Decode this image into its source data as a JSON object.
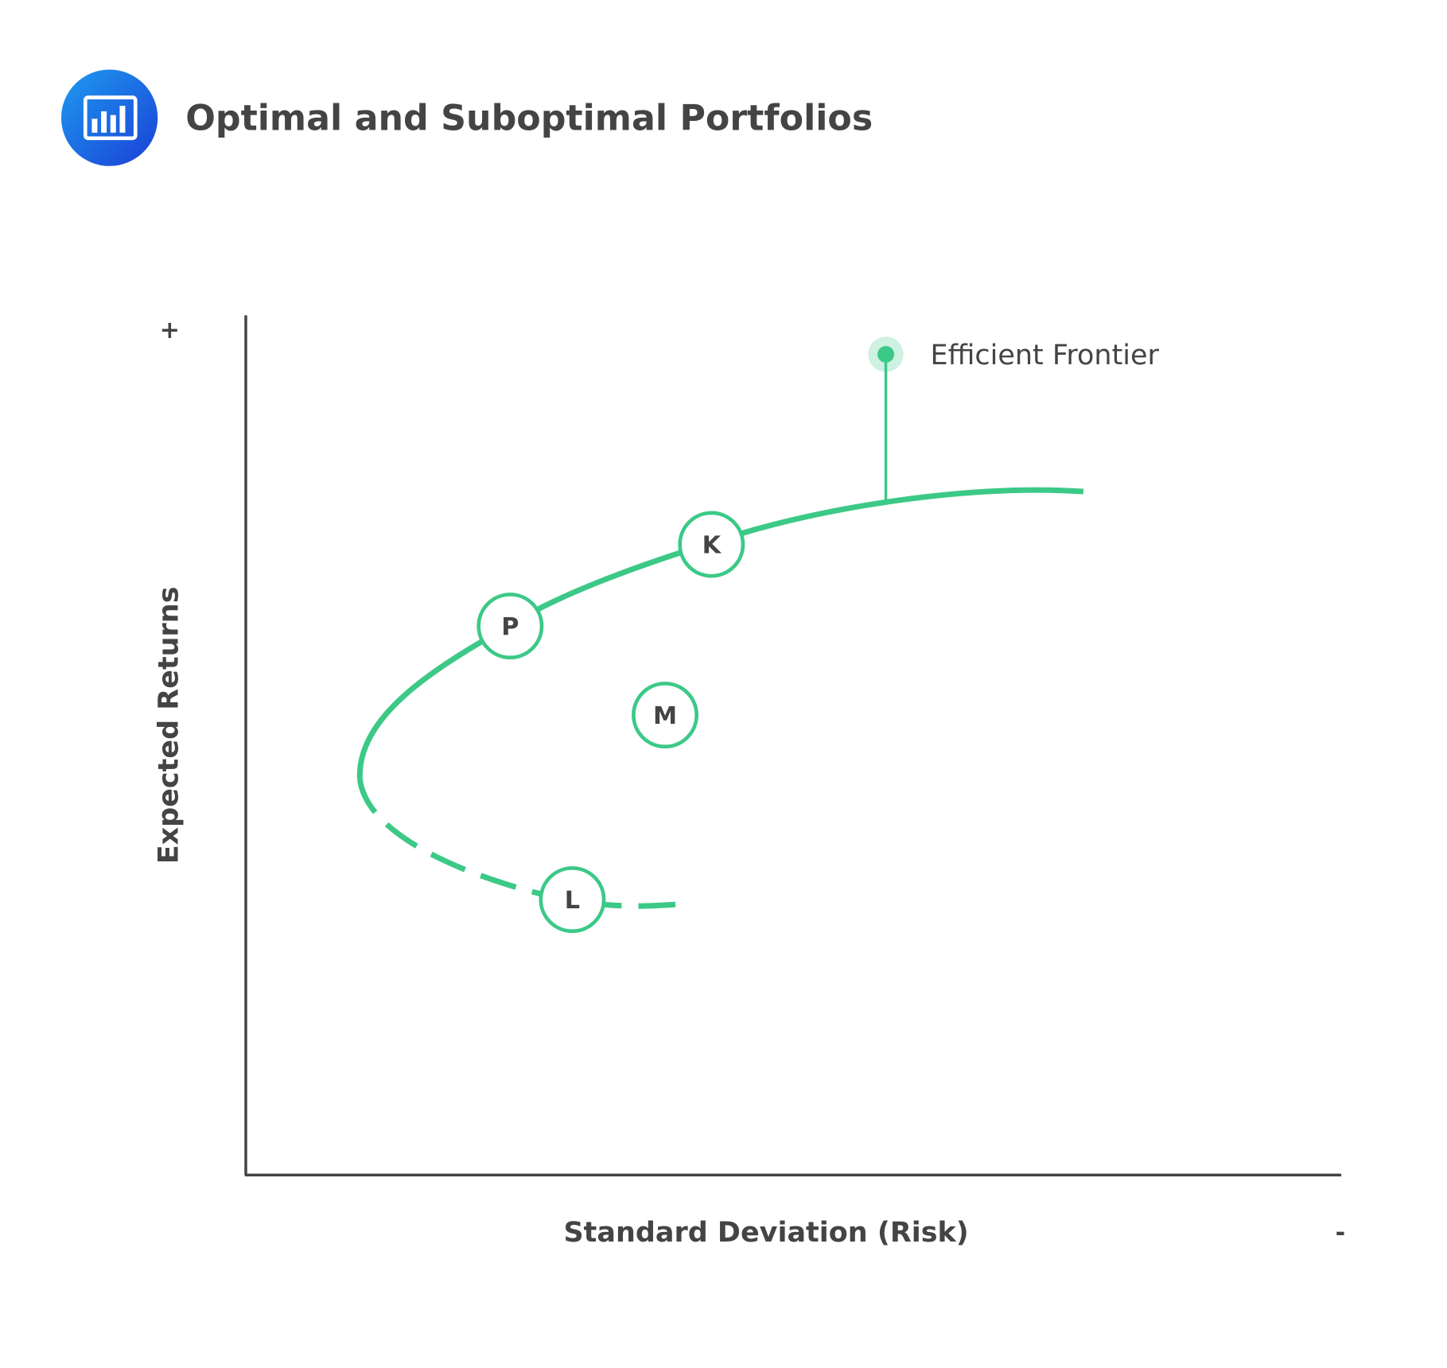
{
  "header": {
    "title": "Optimal and Suboptimal Portfolios"
  },
  "axes": {
    "y_label": "Expected Returns",
    "y_top": "+",
    "x_label": "Standard Deviation (Risk)",
    "x_end": "-"
  },
  "points": [
    {
      "label": "K"
    },
    {
      "label": "P"
    },
    {
      "label": "M"
    },
    {
      "label": "L"
    }
  ],
  "annotation": "Efficient Frontier"
}
